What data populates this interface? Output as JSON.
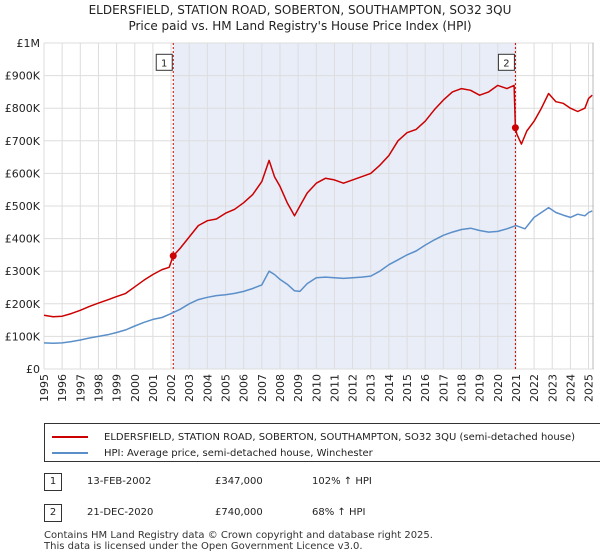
{
  "chart_data": {
    "type": "line",
    "title": "ELDERSFIELD, STATION ROAD, SOBERTON, SOUTHAMPTON, SO32 3QU",
    "subtitle": "Price paid vs. HM Land Registry's House Price Index (HPI)",
    "xlim": [
      1995,
      2025.3
    ],
    "ylim": [
      0,
      1000000
    ],
    "x_ticks": [
      1995,
      1996,
      1997,
      1998,
      1999,
      2000,
      2001,
      2002,
      2003,
      2004,
      2005,
      2006,
      2007,
      2008,
      2009,
      2010,
      2011,
      2012,
      2013,
      2014,
      2015,
      2016,
      2017,
      2018,
      2019,
      2020,
      2021,
      2022,
      2023,
      2024,
      2025
    ],
    "x_tick_labels": [
      "1995",
      "1996",
      "1997",
      "1998",
      "1999",
      "2000",
      "2001",
      "2002",
      "2003",
      "2004",
      "2005",
      "2006",
      "2007",
      "2008",
      "2009",
      "2010",
      "2011",
      "2012",
      "2013",
      "2014",
      "2015",
      "2016",
      "2017",
      "2018",
      "2019",
      "2020",
      "2021",
      "2022",
      "2023",
      "2024",
      "2025"
    ],
    "y_ticks": [
      0,
      100000,
      200000,
      300000,
      400000,
      500000,
      600000,
      700000,
      800000,
      900000,
      1000000
    ],
    "y_tick_labels": [
      "£0",
      "£100K",
      "£200K",
      "£300K",
      "£400K",
      "£500K",
      "£600K",
      "£700K",
      "£800K",
      "£900K",
      "£1M"
    ],
    "grid": true,
    "shaded_region": [
      2002.12,
      2020.97
    ],
    "series": [
      {
        "name": "ELDERSFIELD, STATION ROAD, SOBERTON, SOUTHAMPTON, SO32 3QU (semi-detached house)",
        "color": "#cc0000",
        "x": [
          1995.0,
          1995.5,
          1996.0,
          1996.5,
          1997.0,
          1997.5,
          1998.0,
          1998.5,
          1999.0,
          1999.5,
          2000.0,
          2000.5,
          2001.0,
          2001.5,
          2001.9,
          2002.12,
          2002.5,
          2003.0,
          2003.5,
          2004.0,
          2004.5,
          2005.0,
          2005.5,
          2006.0,
          2006.5,
          2007.0,
          2007.4,
          2007.7,
          2008.0,
          2008.4,
          2008.8,
          2009.1,
          2009.5,
          2010.0,
          2010.5,
          2011.0,
          2011.5,
          2012.0,
          2012.5,
          2013.0,
          2013.5,
          2014.0,
          2014.5,
          2015.0,
          2015.5,
          2016.0,
          2016.5,
          2017.0,
          2017.5,
          2018.0,
          2018.5,
          2019.0,
          2019.5,
          2020.0,
          2020.5,
          2020.9,
          2020.97,
          2021.05,
          2021.3,
          2021.6,
          2022.0,
          2022.4,
          2022.8,
          2023.2,
          2023.6,
          2024.0,
          2024.4,
          2024.8,
          2025.0,
          2025.2
        ],
        "y": [
          165000,
          160000,
          162000,
          170000,
          180000,
          192000,
          202000,
          212000,
          222000,
          232000,
          252000,
          272000,
          290000,
          305000,
          312000,
          347000,
          370000,
          405000,
          440000,
          455000,
          460000,
          478000,
          490000,
          510000,
          535000,
          575000,
          640000,
          590000,
          560000,
          510000,
          470000,
          500000,
          540000,
          570000,
          585000,
          580000,
          570000,
          580000,
          590000,
          600000,
          625000,
          655000,
          700000,
          725000,
          735000,
          760000,
          795000,
          825000,
          850000,
          860000,
          855000,
          840000,
          850000,
          870000,
          860000,
          870000,
          740000,
          720000,
          690000,
          730000,
          760000,
          800000,
          845000,
          820000,
          815000,
          800000,
          790000,
          800000,
          830000,
          840000
        ]
      },
      {
        "name": "HPI: Average price, semi-detached house, Winchester",
        "color": "#5b8fc9",
        "x": [
          1995.0,
          1995.5,
          1996.0,
          1996.5,
          1997.0,
          1997.5,
          1998.0,
          1998.5,
          1999.0,
          1999.5,
          2000.0,
          2000.5,
          2001.0,
          2001.5,
          2002.0,
          2002.5,
          2003.0,
          2003.5,
          2004.0,
          2004.5,
          2005.0,
          2005.5,
          2006.0,
          2006.5,
          2007.0,
          2007.4,
          2007.7,
          2008.0,
          2008.4,
          2008.8,
          2009.1,
          2009.5,
          2010.0,
          2010.5,
          2011.0,
          2011.5,
          2012.0,
          2012.5,
          2013.0,
          2013.5,
          2014.0,
          2014.5,
          2015.0,
          2015.5,
          2016.0,
          2016.5,
          2017.0,
          2017.5,
          2018.0,
          2018.5,
          2019.0,
          2019.5,
          2020.0,
          2020.5,
          2021.0,
          2021.5,
          2022.0,
          2022.4,
          2022.8,
          2023.2,
          2023.6,
          2024.0,
          2024.4,
          2024.8,
          2025.0,
          2025.2
        ],
        "y": [
          80000,
          79000,
          80000,
          84000,
          89000,
          95000,
          100000,
          105000,
          112000,
          120000,
          132000,
          143000,
          152000,
          158000,
          170000,
          183000,
          200000,
          213000,
          220000,
          225000,
          228000,
          232000,
          238000,
          247000,
          258000,
          300000,
          290000,
          275000,
          260000,
          240000,
          238000,
          262000,
          280000,
          282000,
          280000,
          278000,
          280000,
          282000,
          285000,
          300000,
          320000,
          335000,
          350000,
          362000,
          380000,
          396000,
          410000,
          420000,
          428000,
          432000,
          425000,
          420000,
          422000,
          430000,
          440000,
          430000,
          465000,
          480000,
          495000,
          480000,
          472000,
          465000,
          475000,
          470000,
          480000,
          485000
        ]
      }
    ],
    "annotations": [
      {
        "label": "1",
        "x": 2002.12,
        "y": 347000
      },
      {
        "label": "2",
        "x": 2020.97,
        "y": 740000
      }
    ]
  },
  "legend": {
    "items": [
      {
        "label": "ELDERSFIELD, STATION ROAD, SOBERTON, SOUTHAMPTON, SO32 3QU (semi-detached house)",
        "color": "#cc0000"
      },
      {
        "label": "HPI: Average price, semi-detached house, Winchester",
        "color": "#5b8fc9"
      }
    ]
  },
  "transactions": [
    {
      "num": "1",
      "date": "13-FEB-2002",
      "price": "£347,000",
      "hpi": "102% ↑ HPI"
    },
    {
      "num": "2",
      "date": "21-DEC-2020",
      "price": "£740,000",
      "hpi": "68% ↑ HPI"
    }
  ],
  "footer": {
    "line1": "Contains HM Land Registry data © Crown copyright and database right 2025.",
    "line2": "This data is licensed under the Open Government Licence v3.0."
  }
}
